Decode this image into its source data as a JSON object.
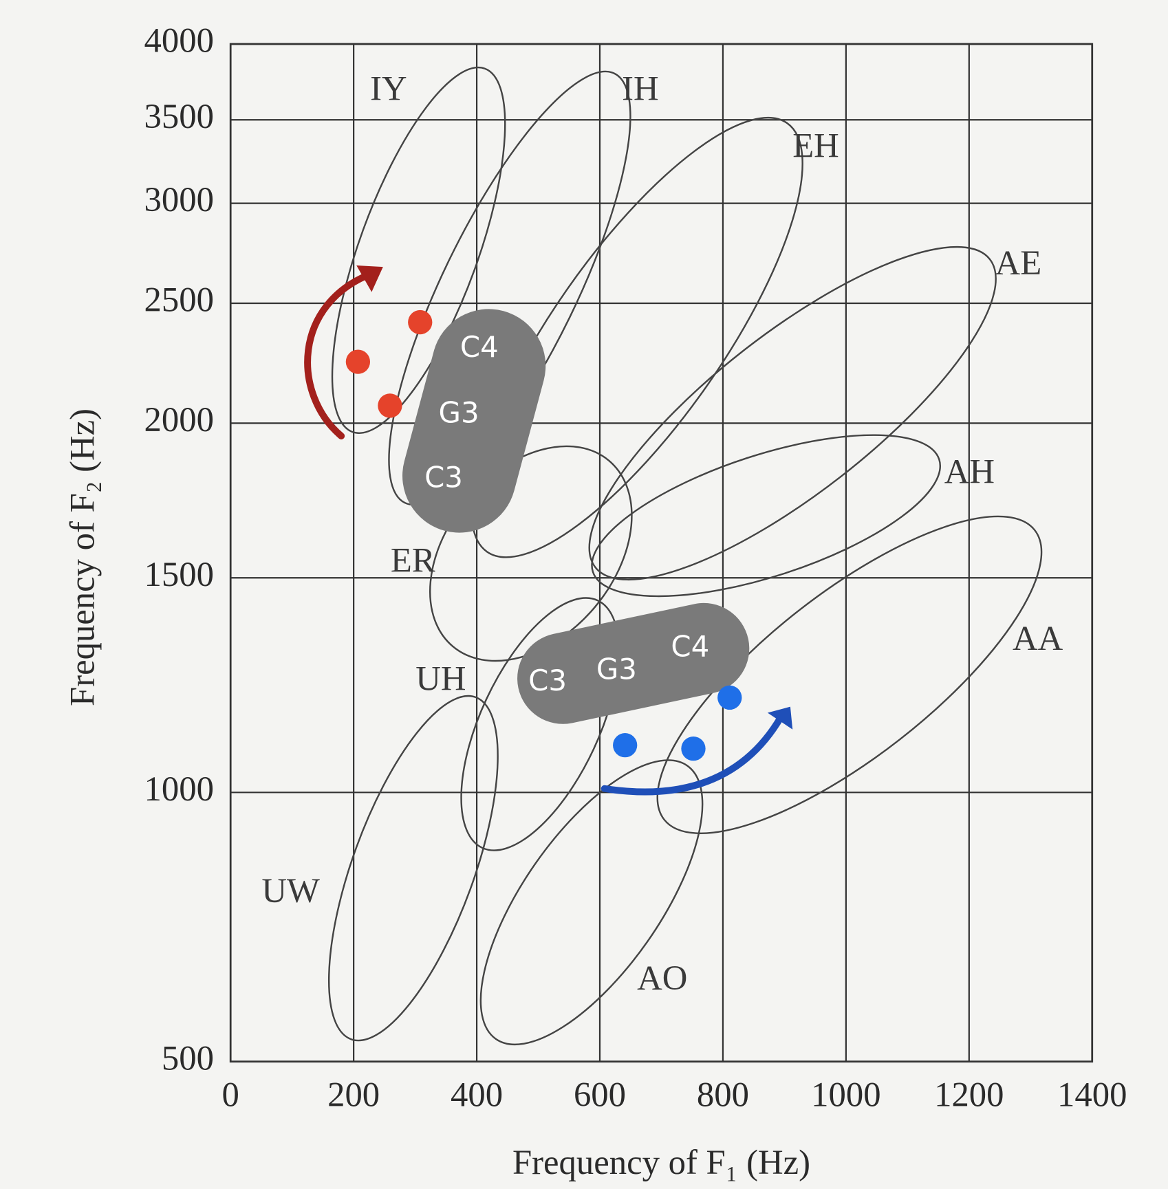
{
  "chart_data": {
    "type": "scatter",
    "xlabel": "Frequency of F₁ (Hz)",
    "ylabel": "Frequency of F₂ (Hz)",
    "xlim": [
      0,
      1400
    ],
    "ylim": [
      500,
      4000
    ],
    "xticks": [
      0,
      200,
      400,
      600,
      800,
      1000,
      1200,
      1400
    ],
    "yticks": [
      500,
      1000,
      1500,
      2000,
      2500,
      3000,
      3500,
      4000
    ],
    "grid": true,
    "regions": [
      "IY",
      "IH",
      "EH",
      "AE",
      "AH",
      "AA",
      "ER",
      "UH",
      "UW",
      "AO"
    ],
    "annotations": [
      "C4",
      "G3",
      "C3",
      "C3",
      "G3",
      "C4"
    ],
    "series": [
      {
        "color": "#e5432b",
        "x": [
          207,
          259,
          308
        ],
        "values": [
          2256,
          2073,
          2421
        ]
      },
      {
        "color": "#1f6fe8",
        "x": [
          641,
          752,
          811
        ],
        "values": [
          1110,
          1102,
          1221
        ]
      }
    ]
  }
}
